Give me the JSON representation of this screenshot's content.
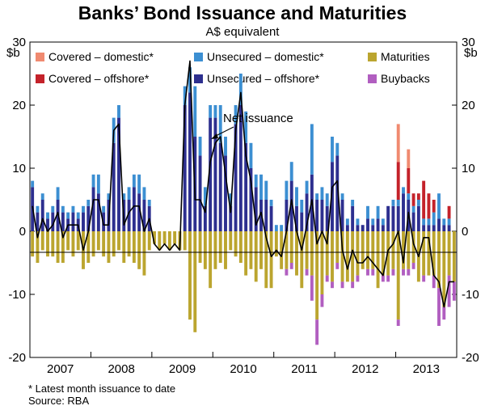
{
  "chart_data": {
    "type": "bar",
    "title": "Banks’ Bond Issuance and Maturities",
    "subtitle": "A$ equivalent",
    "unit_left": "$b",
    "unit_right": "$b",
    "ylim": [
      -20,
      30
    ],
    "yticks": [
      -20,
      -10,
      0,
      10,
      20,
      30
    ],
    "x_start_month": "2007-01",
    "months": 84,
    "year_labels": [
      "2007",
      "2008",
      "2009",
      "2010",
      "2011",
      "2012",
      "2013"
    ],
    "annotation": "Net issuance",
    "legend": [
      {
        "key": "cov_dom",
        "label": "Covered – domestic*",
        "color": "#f08a70"
      },
      {
        "key": "uns_dom",
        "label": "Unsecured – domestic*",
        "color": "#3c8fd2"
      },
      {
        "key": "maturities",
        "label": "Maturities",
        "color": "#bba52f"
      },
      {
        "key": "cov_off",
        "label": "Covered – offshore*",
        "color": "#c4222a"
      },
      {
        "key": "uns_off",
        "label": "Unsecured – offshore*",
        "color": "#2d2f8f"
      },
      {
        "key": "buybacks",
        "label": "Buybacks",
        "color": "#b15ec0"
      }
    ],
    "series": [
      {
        "name": "Unsecured – offshore*",
        "key": "uns_off",
        "values": [
          7,
          3,
          5,
          2,
          3,
          5,
          3,
          2,
          3,
          2,
          3,
          4,
          7,
          6,
          3,
          5,
          14,
          18,
          5,
          5,
          7,
          6,
          5,
          4,
          0,
          0,
          0,
          0,
          0,
          0,
          20,
          22,
          15,
          12,
          4,
          18,
          18,
          14,
          12,
          4,
          17,
          20,
          14,
          10,
          7,
          5,
          5,
          4,
          0,
          0,
          5,
          8,
          4,
          3,
          6,
          9,
          5,
          5,
          4,
          11,
          12,
          5,
          1,
          4,
          1,
          1,
          2,
          1,
          2,
          1,
          4,
          4,
          4,
          6,
          5,
          3,
          4,
          1,
          1,
          1,
          2,
          1,
          1,
          0
        ]
      },
      {
        "name": "Unsecured – domestic*",
        "key": "uns_dom",
        "values": [
          1,
          1,
          1,
          1,
          1,
          2,
          1,
          1,
          1,
          1,
          1,
          1,
          2,
          3,
          1,
          1,
          4,
          2,
          1,
          2,
          2,
          3,
          2,
          1,
          0,
          0,
          0,
          0,
          0,
          0,
          3,
          4,
          8,
          3,
          3,
          2,
          2,
          6,
          3,
          2,
          3,
          5,
          5,
          4,
          2,
          4,
          3,
          1,
          1,
          1,
          3,
          3,
          3,
          2,
          2,
          8,
          1,
          2,
          2,
          4,
          2,
          1,
          1,
          1,
          1,
          0,
          2,
          1,
          2,
          1,
          0,
          1,
          1,
          1,
          1,
          1,
          1,
          1,
          1,
          2,
          4,
          1,
          1,
          0
        ]
      },
      {
        "name": "Covered – offshore*",
        "key": "cov_off",
        "values": [
          0,
          0,
          0,
          0,
          0,
          0,
          0,
          0,
          0,
          0,
          0,
          0,
          0,
          0,
          0,
          0,
          0,
          0,
          0,
          0,
          0,
          0,
          0,
          0,
          0,
          0,
          0,
          0,
          0,
          0,
          0,
          0,
          0,
          0,
          0,
          0,
          0,
          0,
          0,
          0,
          0,
          0,
          0,
          0,
          0,
          0,
          0,
          0,
          0,
          0,
          0,
          0,
          0,
          0,
          0,
          0,
          0,
          0,
          0,
          0,
          0,
          0,
          0,
          0,
          0,
          0,
          0,
          0,
          0,
          0,
          0,
          0,
          6,
          0,
          4,
          2,
          1,
          6,
          4,
          2,
          0,
          0,
          2,
          0
        ]
      },
      {
        "name": "Covered – domestic*",
        "key": "cov_dom",
        "values": [
          0,
          0,
          0,
          0,
          0,
          0,
          0,
          0,
          0,
          0,
          0,
          0,
          0,
          0,
          0,
          0,
          0,
          0,
          0,
          0,
          0,
          0,
          0,
          0,
          0,
          0,
          0,
          0,
          0,
          0,
          0,
          0,
          0,
          0,
          0,
          0,
          0,
          0,
          0,
          0,
          0,
          0,
          0,
          0,
          0,
          0,
          0,
          0,
          0,
          0,
          0,
          0,
          0,
          0,
          0,
          0,
          0,
          0,
          0,
          0,
          0,
          0,
          0,
          0,
          0,
          0,
          0,
          0,
          0,
          0,
          0,
          0,
          6,
          0,
          3,
          0,
          0,
          0,
          0,
          0,
          0,
          0,
          0,
          0
        ]
      },
      {
        "name": "Maturities",
        "key": "maturities",
        "values": [
          -4,
          -5,
          -3,
          -4,
          -4,
          -5,
          -5,
          -3,
          -4,
          -3,
          -6,
          -5,
          -4,
          -3,
          -4,
          -5,
          -4,
          -3,
          -5,
          -4,
          -5,
          -6,
          -7,
          -3,
          -2,
          -3,
          -2,
          -3,
          -2,
          -3,
          -3,
          -14,
          -16,
          -5,
          -6,
          -9,
          -6,
          -5,
          -6,
          -3,
          -4,
          -5,
          -7,
          -6,
          -8,
          -6,
          -9,
          -9,
          -4,
          -6,
          -6,
          -5,
          -7,
          -9,
          -6,
          -7,
          -14,
          -10,
          -7,
          -8,
          -5,
          -8,
          -8,
          -8,
          -7,
          -6,
          -6,
          -6,
          -9,
          -7,
          -7,
          -6,
          -14,
          -6,
          -6,
          -5,
          -8,
          -7,
          -7,
          -7,
          -9,
          -12,
          -7,
          -8
        ]
      },
      {
        "name": "Buybacks",
        "key": "buybacks",
        "values": [
          0,
          0,
          0,
          0,
          0,
          0,
          0,
          0,
          0,
          0,
          0,
          0,
          0,
          0,
          0,
          0,
          0,
          0,
          0,
          0,
          0,
          0,
          0,
          0,
          0,
          0,
          0,
          0,
          0,
          0,
          0,
          0,
          0,
          0,
          0,
          0,
          0,
          0,
          0,
          0,
          0,
          0,
          0,
          0,
          0,
          0,
          0,
          0,
          0,
          0,
          -1,
          -1,
          0,
          0,
          -1,
          -4,
          -4,
          -2,
          -1,
          -1,
          -1,
          -1,
          0,
          -1,
          -1,
          0,
          -1,
          -1,
          0,
          -1,
          -1,
          -1,
          -1,
          -1,
          -1,
          -1,
          0,
          -1,
          0,
          -2,
          -6,
          -2,
          -5,
          -3
        ]
      },
      {
        "name": "Net issuance",
        "key": "net",
        "type": "line",
        "values": [
          4,
          -1,
          2,
          0,
          1,
          3,
          -1,
          1,
          1,
          1,
          -3,
          0,
          5,
          5,
          1,
          1,
          16,
          17,
          1,
          3,
          4,
          4,
          0,
          2,
          -2,
          -3,
          -2,
          -3,
          -2,
          -3,
          20,
          27,
          5,
          5,
          3,
          11,
          14,
          15,
          9,
          3,
          16,
          22,
          12,
          8,
          1,
          3,
          -1,
          -4,
          -3,
          -4,
          0,
          5,
          0,
          -3,
          1,
          5,
          -2,
          0,
          -2,
          7,
          8,
          -3,
          -6,
          -3,
          -5,
          -5,
          -4,
          -5,
          -6,
          -7,
          -3,
          -2,
          0,
          -5,
          3,
          -2,
          -4,
          -1,
          -1,
          -7,
          -8,
          -12,
          -8,
          -8
        ]
      }
    ],
    "source_note": "*    Latest month issuance to date",
    "source": "Source: RBA"
  }
}
